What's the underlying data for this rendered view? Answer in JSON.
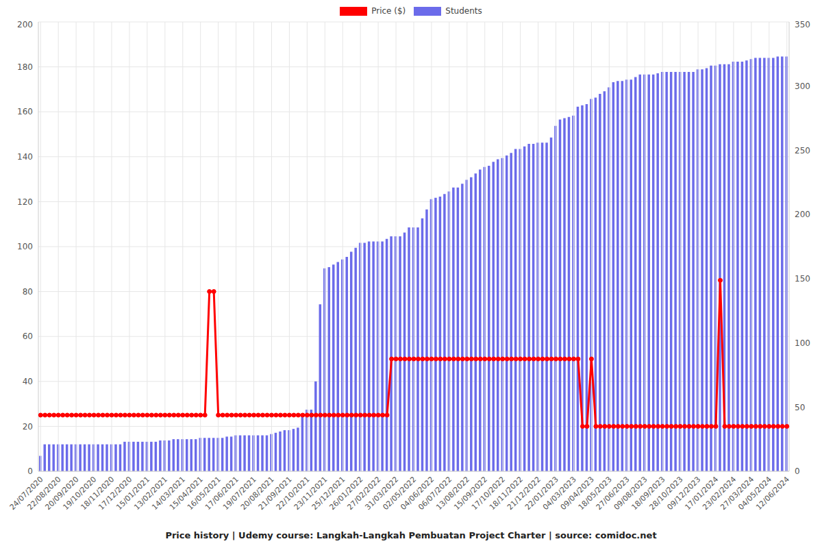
{
  "chart_data": {
    "type": "bar",
    "title": "Price history | Udemy course: Langkah-Langkah Pembuatan Project Charter | source: comidoc.net",
    "legend": "top",
    "grid": true,
    "categories": [
      "24/07/2020",
      null,
      null,
      null,
      "22/08/2020",
      null,
      null,
      null,
      "20/09/2020",
      null,
      null,
      null,
      "19/10/2020",
      null,
      null,
      null,
      "18/11/2020",
      null,
      null,
      null,
      "17/12/2020",
      null,
      null,
      null,
      "15/01/2021",
      null,
      null,
      null,
      "13/02/2021",
      null,
      null,
      null,
      "14/03/2021",
      null,
      null,
      null,
      "15/04/2021",
      null,
      null,
      null,
      "16/05/2021",
      null,
      null,
      null,
      "17/06/2021",
      null,
      null,
      null,
      "19/07/2021",
      null,
      null,
      null,
      "20/08/2021",
      null,
      null,
      null,
      "21/09/2021",
      null,
      null,
      null,
      "22/10/2021",
      null,
      null,
      null,
      "23/11/2021",
      null,
      null,
      null,
      "25/12/2021",
      null,
      null,
      null,
      "26/01/2022",
      null,
      null,
      null,
      "27/02/2022",
      null,
      null,
      null,
      "31/03/2022",
      null,
      null,
      null,
      "02/05/2022",
      null,
      null,
      null,
      "04/06/2022",
      null,
      null,
      null,
      "06/07/2022",
      null,
      null,
      null,
      "13/08/2022",
      null,
      null,
      null,
      "15/09/2022",
      null,
      null,
      null,
      "17/10/2022",
      null,
      null,
      null,
      "18/11/2022",
      null,
      null,
      null,
      "21/12/2022",
      null,
      null,
      null,
      "22/01/2023",
      null,
      null,
      null,
      "04/03/2023",
      null,
      null,
      null,
      "09/04/2023",
      null,
      null,
      null,
      "18/05/2023",
      null,
      null,
      null,
      "27/06/2023",
      null,
      null,
      null,
      "09/08/2023",
      null,
      null,
      null,
      "18/09/2023",
      null,
      null,
      null,
      "28/10/2023",
      null,
      null,
      null,
      "09/12/2023",
      null,
      null,
      null,
      "17/01/2024",
      null,
      null,
      null,
      "23/02/2024",
      null,
      null,
      null,
      "27/03/2024",
      null,
      null,
      null,
      "04/05/2024",
      null,
      null,
      null,
      "12/06/2024"
    ],
    "ylim": [
      0,
      200
    ],
    "yticks": [
      0,
      20,
      40,
      60,
      80,
      100,
      120,
      140,
      160,
      180,
      200
    ],
    "y2lim": [
      0,
      350
    ],
    "y2ticks": [
      0,
      50,
      100,
      150,
      200,
      250,
      300,
      350
    ],
    "series": [
      {
        "name": "Price ($)",
        "type": "line",
        "color": "#ff0000",
        "marker": "circle",
        "values": [
          25,
          25,
          25,
          25,
          25,
          25,
          25,
          25,
          25,
          25,
          25,
          25,
          25,
          25,
          25,
          25,
          25,
          25,
          25,
          25,
          25,
          25,
          25,
          25,
          25,
          25,
          25,
          25,
          25,
          25,
          25,
          25,
          25,
          25,
          25,
          25,
          25,
          25,
          80,
          80,
          25,
          25,
          25,
          25,
          25,
          25,
          25,
          25,
          25,
          25,
          25,
          25,
          25,
          25,
          25,
          25,
          25,
          25,
          25,
          25,
          25,
          25,
          25,
          25,
          25,
          25,
          25,
          25,
          25,
          25,
          25,
          25,
          25,
          25,
          25,
          25,
          25,
          25,
          25,
          50,
          50,
          50,
          50,
          50,
          50,
          50,
          50,
          50,
          50,
          50,
          50,
          50,
          50,
          50,
          50,
          50,
          50,
          50,
          50,
          50,
          50,
          50,
          50,
          50,
          50,
          50,
          50,
          50,
          50,
          50,
          50,
          50,
          50,
          50,
          50,
          50,
          50,
          50,
          50,
          50,
          50,
          50,
          20,
          20,
          50,
          20,
          20,
          20,
          20,
          20,
          20,
          20,
          20,
          20,
          20,
          20,
          20,
          20,
          20,
          20,
          20,
          20,
          20,
          20,
          20,
          20,
          20,
          20,
          20,
          20,
          20,
          20,
          20,
          85,
          20,
          20,
          20,
          20,
          20,
          20,
          20,
          20,
          20,
          20,
          20,
          20,
          20,
          20,
          20
        ]
      },
      {
        "name": "Students",
        "type": "bar",
        "axis": "y2",
        "color": "#6b6bea",
        "values": [
          12,
          21,
          21,
          21,
          21,
          21,
          21,
          21,
          21,
          21,
          21,
          21,
          21,
          21,
          21,
          21,
          21,
          21,
          21,
          23,
          23,
          23,
          23,
          23,
          23,
          23,
          23,
          24,
          24,
          24,
          25,
          25,
          25,
          25,
          25,
          25,
          26,
          26,
          26,
          26,
          26,
          26,
          27,
          27,
          28,
          28,
          28,
          28,
          28,
          28,
          28,
          28,
          29,
          30,
          31,
          32,
          32,
          33,
          34,
          44,
          48,
          48,
          70,
          130,
          158,
          159,
          161,
          163,
          165,
          167,
          171,
          174,
          178,
          178,
          179,
          179,
          179,
          179,
          181,
          183,
          183,
          183,
          186,
          190,
          190,
          190,
          197,
          204,
          212,
          213,
          214,
          216,
          218,
          221,
          221,
          224,
          227,
          229,
          232,
          235,
          237,
          238,
          241,
          243,
          244,
          246,
          248,
          251,
          251,
          253,
          255,
          255,
          256,
          256,
          256,
          260,
          269,
          274,
          275,
          276,
          277,
          284,
          285,
          286,
          290,
          291,
          294,
          296,
          299,
          303,
          304,
          304,
          305,
          305,
          307,
          309,
          309,
          309,
          309,
          310,
          311,
          311,
          311,
          311,
          311,
          311,
          311,
          311,
          313,
          313,
          314,
          316,
          316,
          317,
          317,
          317,
          319,
          319,
          319,
          320,
          321,
          322,
          322,
          322,
          322,
          322,
          323,
          323,
          323
        ]
      }
    ]
  }
}
